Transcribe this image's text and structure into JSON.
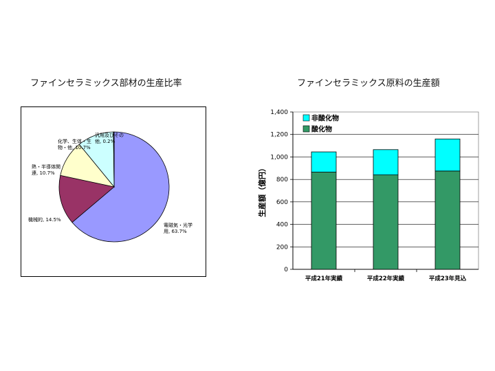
{
  "colors": {
    "slice_1": "#9999ff",
    "slice_2": "#993366",
    "slice_3": "#ffffcc",
    "slice_4": "#ccffff",
    "slice_5": "#000080",
    "oxide": "#339966",
    "nonoxide": "#00ffff"
  },
  "chart_data": [
    {
      "type": "pie",
      "title": "ファインセラミックス部材の生産比率",
      "slices": [
        {
          "label_lines": [
            "電磁気・光学",
            "用, 63.7%"
          ],
          "value": 63.7
        },
        {
          "label_lines": [
            "機械的, 14.5%"
          ],
          "value": 14.5
        },
        {
          "label_lines": [
            "熱・半導体関",
            "連, 10.7%"
          ],
          "value": 10.7
        },
        {
          "label_lines": [
            "化学、生体・生",
            "物・他, 10.7%"
          ],
          "value": 10.7
        },
        {
          "label_lines": [
            "汎用及びその",
            "他, 0.2%"
          ],
          "value": 0.2
        }
      ]
    },
    {
      "type": "bar",
      "stacked": true,
      "title": "ファインセラミックス原料の生産額",
      "ylabel": "生産額（億円）",
      "categories": [
        "平成21年実績",
        "平成22年実績",
        "平成23年見込"
      ],
      "series": [
        {
          "name": "酸化物",
          "values": [
            865,
            840,
            875
          ]
        },
        {
          "name": "非酸化物",
          "values": [
            180,
            225,
            285
          ]
        }
      ],
      "ylim": [
        0,
        1400
      ],
      "yticks": [
        "0",
        "200",
        "400",
        "600",
        "800",
        "1,000",
        "1,200",
        "1,400"
      ],
      "grid": true,
      "legend": "top-left"
    }
  ]
}
